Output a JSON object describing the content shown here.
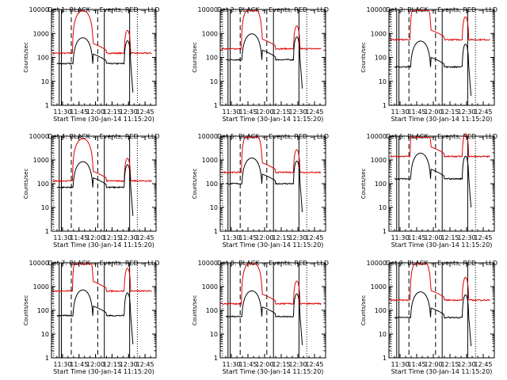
{
  "chart_data": [
    {
      "type": "line",
      "title": "Det 1: BLACK = Events, RED = LLD",
      "xlabel": "Start Time (30-Jan-14 11:15:20)",
      "ylabel": "Counts/sec",
      "yscale": "log",
      "ylim": [
        1,
        10000
      ],
      "xlim": [
        "11:20",
        "12:55"
      ],
      "xticks": [
        "11:30",
        "11:45",
        "12:00",
        "12:15",
        "12:30",
        "12:45"
      ],
      "yticks": [
        "1",
        "10",
        "100",
        "1000",
        "10000"
      ],
      "series": [
        {
          "name": "RED = LLD",
          "color": "#dd0000",
          "level": 150
        },
        {
          "name": "BLACK = Events",
          "color": "#000000",
          "level": 55
        }
      ]
    },
    {
      "type": "line",
      "title": "Det 2: BLACK = Events, RED = LLD",
      "xlabel": "Start Time (30-Jan-14 11:15:20)",
      "ylabel": "Counts/sec",
      "yscale": "log",
      "ylim": [
        1,
        10000
      ],
      "xlim": [
        "11:20",
        "12:55"
      ],
      "xticks": [
        "11:30",
        "11:45",
        "12:00",
        "12:15",
        "12:30",
        "12:45"
      ],
      "yticks": [
        "1",
        "10",
        "100",
        "1000",
        "10000"
      ],
      "series": [
        {
          "name": "RED = LLD",
          "color": "#dd0000",
          "level": 230
        },
        {
          "name": "BLACK = Events",
          "color": "#000000",
          "level": 80
        }
      ]
    },
    {
      "type": "line",
      "title": "Det 3: BLACK = Events, RED = LLD",
      "xlabel": "Start Time (30-Jan-14 11:15:20)",
      "ylabel": "Counts/sec",
      "yscale": "log",
      "ylim": [
        1,
        10000
      ],
      "xlim": [
        "11:20",
        "12:55"
      ],
      "xticks": [
        "11:30",
        "11:45",
        "12:00",
        "12:15",
        "12:30",
        "12:45"
      ],
      "yticks": [
        "1",
        "10",
        "100",
        "1000",
        "10000"
      ],
      "series": [
        {
          "name": "RED = LLD",
          "color": "#dd0000",
          "level": 550
        },
        {
          "name": "BLACK = Events",
          "color": "#000000",
          "level": 40
        }
      ]
    },
    {
      "type": "line",
      "title": "Det 4: BLACK = Events, RED = LLD",
      "xlabel": "Start Time (30-Jan-14 11:15:20)",
      "ylabel": "Counts/sec",
      "yscale": "log",
      "ylim": [
        1,
        10000
      ],
      "xlim": [
        "11:20",
        "12:55"
      ],
      "xticks": [
        "11:30",
        "11:45",
        "12:00",
        "12:15",
        "12:30",
        "12:45"
      ],
      "yticks": [
        "1",
        "10",
        "100",
        "1000",
        "10000"
      ],
      "series": [
        {
          "name": "RED = LLD",
          "color": "#dd0000",
          "level": 130
        },
        {
          "name": "BLACK = Events",
          "color": "#000000",
          "level": 70
        }
      ]
    },
    {
      "type": "line",
      "title": "Det 5: BLACK = Events, RED = LLD",
      "xlabel": "Start Time (30-Jan-14 11:15:20)",
      "ylabel": "Counts/sec",
      "yscale": "log",
      "ylim": [
        1,
        10000
      ],
      "xlim": [
        "11:20",
        "12:55"
      ],
      "xticks": [
        "11:30",
        "11:45",
        "12:00",
        "12:15",
        "12:30",
        "12:45"
      ],
      "yticks": [
        "1",
        "10",
        "100",
        "1000",
        "10000"
      ],
      "series": [
        {
          "name": "RED = LLD",
          "color": "#dd0000",
          "level": 300
        },
        {
          "name": "BLACK = Events",
          "color": "#000000",
          "level": 100
        }
      ]
    },
    {
      "type": "line",
      "title": "Det 6: BLACK = Events, RED = LLD",
      "xlabel": "Start Time (30-Jan-14 11:15:20)",
      "ylabel": "Counts/sec",
      "yscale": "log",
      "ylim": [
        1,
        10000
      ],
      "xlim": [
        "11:20",
        "12:55"
      ],
      "xticks": [
        "11:30",
        "11:45",
        "12:00",
        "12:15",
        "12:30",
        "12:45"
      ],
      "yticks": [
        "1",
        "10",
        "100",
        "1000",
        "10000"
      ],
      "series": [
        {
          "name": "RED = LLD",
          "color": "#dd0000",
          "level": 1400
        },
        {
          "name": "BLACK = Events",
          "color": "#000000",
          "level": 160
        }
      ]
    },
    {
      "type": "line",
      "title": "Det 7: BLACK = Events, RED = LLD",
      "xlabel": "Start Time (30-Jan-14 11:15:20)",
      "ylabel": "Counts/sec",
      "yscale": "log",
      "ylim": [
        1,
        10000
      ],
      "xlim": [
        "11:20",
        "12:55"
      ],
      "xticks": [
        "11:30",
        "11:45",
        "12:00",
        "12:15",
        "12:30",
        "12:45"
      ],
      "yticks": [
        "1",
        "10",
        "100",
        "1000",
        "10000"
      ],
      "series": [
        {
          "name": "RED = LLD",
          "color": "#dd0000",
          "level": 650
        },
        {
          "name": "BLACK = Events",
          "color": "#000000",
          "level": 60
        }
      ]
    },
    {
      "type": "line",
      "title": "Det 8: BLACK = Events, RED = LLD",
      "xlabel": "Start Time (30-Jan-14 11:15:20)",
      "ylabel": "Counts/sec",
      "yscale": "log",
      "ylim": [
        1,
        10000
      ],
      "xlim": [
        "11:20",
        "12:55"
      ],
      "xticks": [
        "11:30",
        "11:45",
        "12:00",
        "12:15",
        "12:30",
        "12:45"
      ],
      "yticks": [
        "1",
        "10",
        "100",
        "1000",
        "10000"
      ],
      "series": [
        {
          "name": "RED = LLD",
          "color": "#dd0000",
          "level": 190
        },
        {
          "name": "BLACK = Events",
          "color": "#000000",
          "level": 55
        }
      ]
    },
    {
      "type": "line",
      "title": "Det 9: BLACK = Events, RED = LLD",
      "xlabel": "Start Time (30-Jan-14 11:15:20)",
      "ylabel": "Counts/sec",
      "yscale": "log",
      "ylim": [
        1,
        10000
      ],
      "xlim": [
        "11:20",
        "12:55"
      ],
      "xticks": [
        "11:30",
        "11:45",
        "12:00",
        "12:15",
        "12:30",
        "12:45"
      ],
      "yticks": [
        "1",
        "10",
        "100",
        "1000",
        "10000"
      ],
      "series": [
        {
          "name": "RED = LLD",
          "color": "#dd0000",
          "level": 270
        },
        {
          "name": "BLACK = Events",
          "color": "#000000",
          "level": 50
        }
      ]
    }
  ]
}
